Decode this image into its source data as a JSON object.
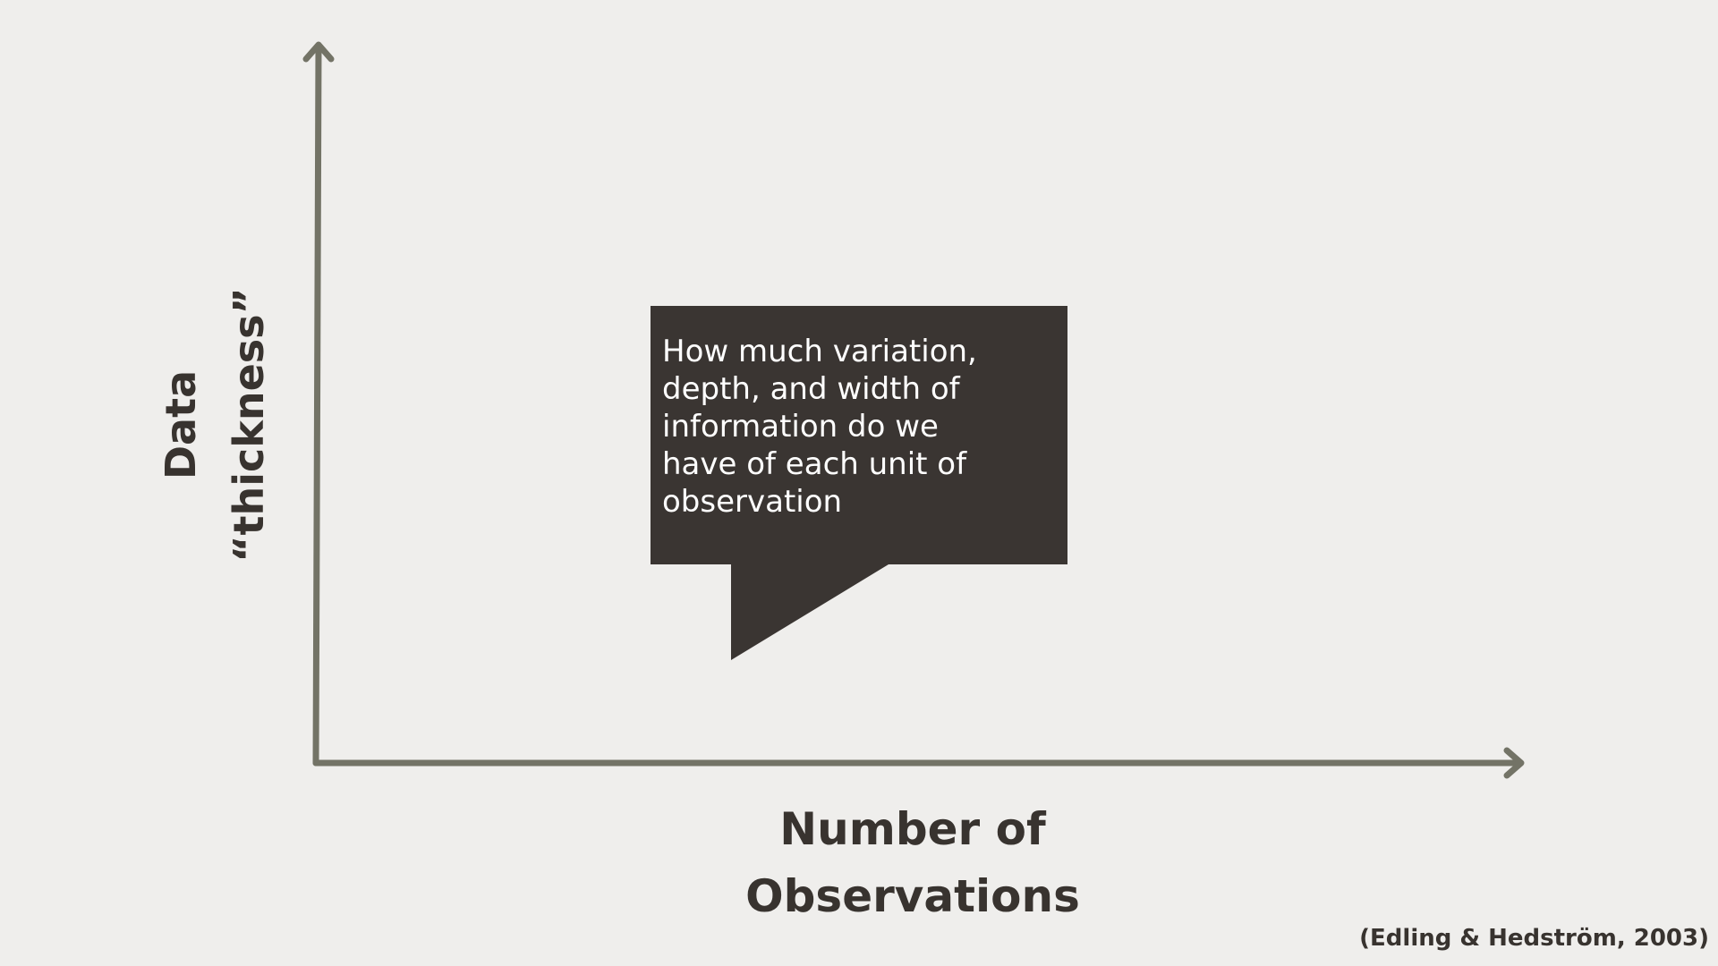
{
  "diagram": {
    "y_axis_label": [
      "Data",
      "“thickness”"
    ],
    "x_axis_label": [
      "Number of",
      "Observations"
    ],
    "callout_lines": [
      "How much variation,",
      "depth, and width of",
      "information do we",
      "have of each unit of",
      "observation"
    ],
    "citation": "(Edling & Hedström, 2003)"
  },
  "colors": {
    "background": "#EFEEEC",
    "axis": "#737366",
    "callout_fill": "#3A3532",
    "text_dark": "#38332F",
    "callout_text": "#FFFFFF"
  }
}
